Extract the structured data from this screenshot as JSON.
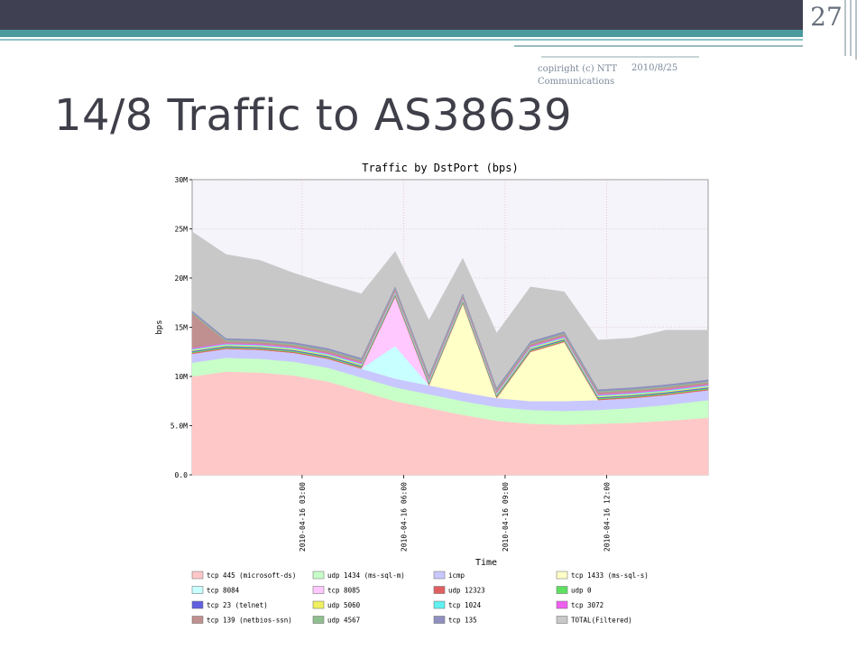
{
  "slide": {
    "page_number": "27",
    "footer_copyright": "copiright (c) NTT Communications",
    "footer_date": "2010/8/25",
    "title": "14/8 Traffic to AS38639"
  },
  "chart_data": {
    "type": "area",
    "stacked": true,
    "title": "Traffic by DstPort (bps)",
    "xlabel": "Time",
    "ylabel": "bps",
    "ylim": [
      0,
      30000000
    ],
    "ytick_values": [
      0,
      5000000,
      10000000,
      15000000,
      20000000,
      25000000,
      30000000
    ],
    "ytick_labels": [
      "0.0",
      "5.0M",
      "10M",
      "15M",
      "20M",
      "25M",
      "30M"
    ],
    "xlim": [
      "2010-04-15 23:45",
      "2010-04-16 15:00"
    ],
    "xtick_values": [
      "2010-04-16 03:00",
      "2010-04-16 06:00",
      "2010-04-16 09:00",
      "2010-04-16 12:00"
    ],
    "xtick_labels": [
      "2010-04-16 03:00",
      "2010-04-16 06:00",
      "2010-04-16 09:00",
      "2010-04-16 12:00"
    ],
    "grid": true,
    "legend_position": "bottom",
    "x": [
      "2010-04-15 23:45",
      "2010-04-16 00:45",
      "2010-04-16 01:45",
      "2010-04-16 02:45",
      "2010-04-16 03:45",
      "2010-04-16 04:45",
      "2010-04-16 05:45",
      "2010-04-16 06:45",
      "2010-04-16 07:45",
      "2010-04-16 08:45",
      "2010-04-16 09:45",
      "2010-04-16 10:45",
      "2010-04-16 11:45",
      "2010-04-16 12:45",
      "2010-04-16 13:45",
      "2010-04-16 15:00"
    ],
    "series": [
      {
        "name": "tcp 445 (microsoft-ds)",
        "color": "#ffc8c8",
        "values": [
          10000000,
          10500000,
          10400000,
          10100000,
          9500000,
          8500000,
          7500000,
          6800000,
          6100000,
          5500000,
          5200000,
          5100000,
          5200000,
          5300000,
          5500000,
          5800000
        ]
      },
      {
        "name": "udp 1434 (ms-sql-m)",
        "color": "#c8ffc8",
        "values": [
          1400000,
          1400000,
          1400000,
          1400000,
          1400000,
          1400000,
          1400000,
          1400000,
          1400000,
          1400000,
          1400000,
          1400000,
          1400000,
          1500000,
          1600000,
          1800000
        ]
      },
      {
        "name": "icmp",
        "color": "#c8c8ff",
        "values": [
          900000,
          900000,
          900000,
          900000,
          900000,
          900000,
          900000,
          900000,
          900000,
          900000,
          900000,
          1000000,
          1000000,
          1000000,
          1000000,
          1000000
        ]
      },
      {
        "name": "tcp 1433 (ms-sql-s)",
        "color": "#ffffc8",
        "values": [
          0,
          0,
          0,
          0,
          0,
          0,
          0,
          0,
          9000000,
          0,
          5000000,
          6000000,
          0,
          0,
          0,
          0
        ]
      },
      {
        "name": "tcp 8084",
        "color": "#c8ffff",
        "values": [
          0,
          0,
          0,
          0,
          0,
          0,
          3300000,
          0,
          0,
          0,
          0,
          0,
          0,
          0,
          0,
          0
        ]
      },
      {
        "name": "tcp 8085",
        "color": "#ffc8ff",
        "values": [
          0,
          0,
          0,
          0,
          0,
          0,
          5000000,
          0,
          0,
          0,
          0,
          0,
          0,
          0,
          0,
          0
        ]
      },
      {
        "name": "udp 12323",
        "color": "#e06060",
        "values": [
          100000,
          100000,
          100000,
          100000,
          100000,
          100000,
          100000,
          100000,
          100000,
          100000,
          100000,
          100000,
          100000,
          100000,
          100000,
          100000
        ]
      },
      {
        "name": "udp 0",
        "color": "#60e060",
        "values": [
          100000,
          100000,
          100000,
          100000,
          100000,
          100000,
          100000,
          100000,
          100000,
          100000,
          100000,
          100000,
          100000,
          100000,
          100000,
          100000
        ]
      },
      {
        "name": "tcp 23 (telnet)",
        "color": "#6060e0",
        "values": [
          100000,
          100000,
          100000,
          100000,
          100000,
          100000,
          100000,
          100000,
          100000,
          100000,
          100000,
          100000,
          100000,
          100000,
          100000,
          100000
        ]
      },
      {
        "name": "udp 5060",
        "color": "#f0f060",
        "values": [
          100000,
          100000,
          100000,
          100000,
          100000,
          100000,
          100000,
          100000,
          100000,
          100000,
          100000,
          100000,
          100000,
          100000,
          100000,
          100000
        ]
      },
      {
        "name": "tcp 1024",
        "color": "#60f0f0",
        "values": [
          100000,
          100000,
          100000,
          100000,
          100000,
          100000,
          100000,
          100000,
          100000,
          100000,
          100000,
          100000,
          100000,
          100000,
          100000,
          100000
        ]
      },
      {
        "name": "tcp 3072",
        "color": "#f060f0",
        "values": [
          100000,
          100000,
          100000,
          100000,
          100000,
          100000,
          100000,
          100000,
          100000,
          100000,
          100000,
          100000,
          100000,
          100000,
          100000,
          100000
        ]
      },
      {
        "name": "tcp 139 (netbios-ssn)",
        "color": "#c09090",
        "values": [
          3500000,
          200000,
          200000,
          200000,
          200000,
          200000,
          200000,
          200000,
          200000,
          200000,
          200000,
          200000,
          200000,
          200000,
          200000,
          200000
        ]
      },
      {
        "name": "udp 4567",
        "color": "#90c090",
        "values": [
          100000,
          100000,
          100000,
          100000,
          100000,
          100000,
          100000,
          100000,
          100000,
          100000,
          100000,
          100000,
          100000,
          100000,
          100000,
          100000
        ]
      },
      {
        "name": "tcp 135",
        "color": "#9090c0",
        "values": [
          200000,
          200000,
          200000,
          200000,
          200000,
          200000,
          200000,
          200000,
          200000,
          200000,
          200000,
          200000,
          200000,
          200000,
          200000,
          200000
        ]
      },
      {
        "name": "TOTAL(Filtered)",
        "color": "#c8c8c8",
        "values": [
          8000000,
          8500000,
          8000000,
          7000000,
          6500000,
          6500000,
          3500000,
          5500000,
          3500000,
          5500000,
          5500000,
          4000000,
          5000000,
          5000000,
          5500000,
          5000000
        ]
      }
    ]
  }
}
